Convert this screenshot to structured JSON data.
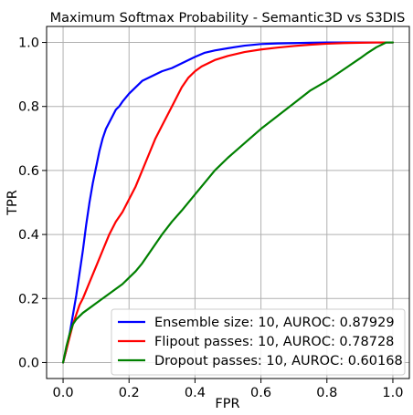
{
  "chart_data": {
    "type": "line",
    "title": "Maximum Softmax Probability - Semantic3D vs S3DIS",
    "xlabel": "FPR",
    "ylabel": "TPR",
    "xlim": [
      -0.05,
      1.05
    ],
    "ylim": [
      -0.05,
      1.05
    ],
    "xticks": [
      0.0,
      0.2,
      0.4,
      0.6,
      0.8,
      1.0
    ],
    "yticks": [
      0.0,
      0.2,
      0.4,
      0.6,
      0.8,
      1.0
    ],
    "xtick_labels": [
      "0.0",
      "0.2",
      "0.4",
      "0.6",
      "0.8",
      "1.0"
    ],
    "ytick_labels": [
      "0.0",
      "0.2",
      "0.4",
      "0.6",
      "0.8",
      "1.0"
    ],
    "grid": true,
    "legend_position": "bottom-right",
    "series": [
      {
        "name": "Ensemble size: 10, AUROC: 0.87929",
        "color": "#0000ff",
        "x": [
          0.0,
          0.01,
          0.02,
          0.03,
          0.04,
          0.05,
          0.06,
          0.07,
          0.08,
          0.09,
          0.1,
          0.11,
          0.12,
          0.13,
          0.14,
          0.15,
          0.16,
          0.17,
          0.18,
          0.2,
          0.22,
          0.24,
          0.26,
          0.28,
          0.3,
          0.33,
          0.36,
          0.38,
          0.4,
          0.43,
          0.46,
          0.5,
          0.55,
          0.6,
          0.65,
          0.7,
          0.75,
          0.8,
          0.85,
          0.9,
          0.95,
          1.0
        ],
        "y": [
          0.0,
          0.04,
          0.09,
          0.15,
          0.21,
          0.28,
          0.35,
          0.43,
          0.5,
          0.56,
          0.61,
          0.66,
          0.7,
          0.73,
          0.75,
          0.77,
          0.79,
          0.8,
          0.815,
          0.84,
          0.86,
          0.88,
          0.89,
          0.9,
          0.91,
          0.92,
          0.935,
          0.945,
          0.955,
          0.968,
          0.975,
          0.982,
          0.99,
          0.995,
          0.997,
          0.998,
          0.999,
          1.0,
          1.0,
          1.0,
          1.0,
          1.0
        ]
      },
      {
        "name": "Flipout passes: 10, AUROC: 0.78728",
        "color": "#ff0000",
        "x": [
          0.0,
          0.01,
          0.02,
          0.03,
          0.04,
          0.05,
          0.06,
          0.08,
          0.1,
          0.12,
          0.14,
          0.16,
          0.18,
          0.2,
          0.22,
          0.24,
          0.26,
          0.28,
          0.3,
          0.32,
          0.34,
          0.36,
          0.38,
          0.4,
          0.42,
          0.44,
          0.46,
          0.5,
          0.55,
          0.6,
          0.65,
          0.7,
          0.75,
          0.8,
          0.85,
          0.9,
          0.95,
          1.0
        ],
        "y": [
          0.0,
          0.04,
          0.08,
          0.12,
          0.15,
          0.18,
          0.2,
          0.25,
          0.3,
          0.35,
          0.4,
          0.44,
          0.47,
          0.51,
          0.55,
          0.6,
          0.65,
          0.7,
          0.74,
          0.78,
          0.82,
          0.86,
          0.89,
          0.91,
          0.925,
          0.935,
          0.945,
          0.958,
          0.97,
          0.978,
          0.984,
          0.989,
          0.993,
          0.996,
          0.998,
          0.999,
          1.0,
          1.0
        ]
      },
      {
        "name": "Dropout passes: 10, AUROC: 0.60168",
        "color": "#008000",
        "x": [
          0.0,
          0.01,
          0.02,
          0.03,
          0.04,
          0.05,
          0.06,
          0.08,
          0.1,
          0.12,
          0.14,
          0.16,
          0.18,
          0.2,
          0.22,
          0.24,
          0.26,
          0.28,
          0.3,
          0.33,
          0.36,
          0.4,
          0.44,
          0.46,
          0.5,
          0.55,
          0.6,
          0.65,
          0.7,
          0.75,
          0.8,
          0.85,
          0.9,
          0.92,
          0.95,
          0.98,
          1.0
        ],
        "y": [
          0.0,
          0.05,
          0.09,
          0.12,
          0.135,
          0.145,
          0.155,
          0.17,
          0.185,
          0.2,
          0.215,
          0.23,
          0.245,
          0.265,
          0.285,
          0.31,
          0.34,
          0.37,
          0.4,
          0.44,
          0.475,
          0.525,
          0.575,
          0.6,
          0.64,
          0.685,
          0.73,
          0.77,
          0.81,
          0.85,
          0.88,
          0.915,
          0.95,
          0.965,
          0.985,
          1.0,
          1.0
        ]
      }
    ]
  }
}
